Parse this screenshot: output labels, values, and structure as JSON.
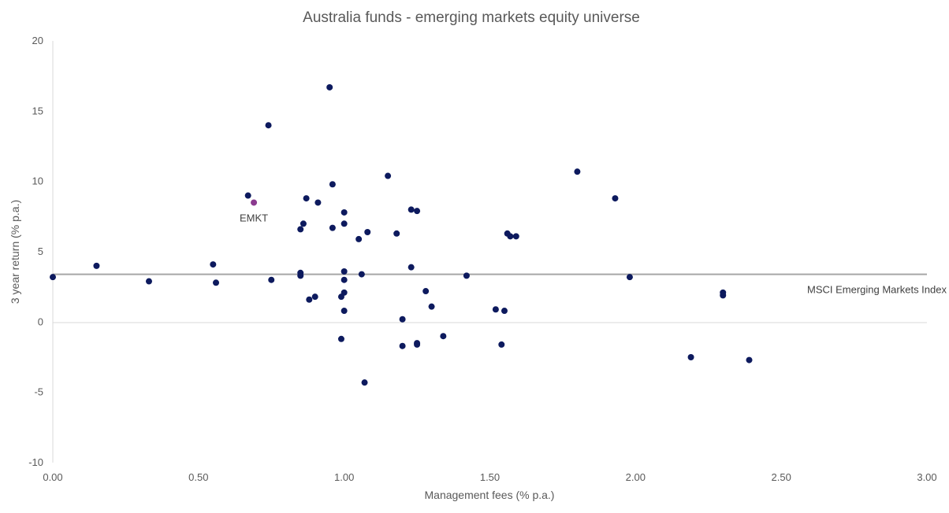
{
  "chart_data": {
    "type": "scatter",
    "title": "Australia funds - emerging markets equity universe",
    "xlabel": "Management fees (% p.a.)",
    "ylabel": "3 year return (% p.a.)",
    "xlim": [
      0,
      3
    ],
    "ylim": [
      -10,
      20
    ],
    "x_ticks": [
      "0.00",
      "0.50",
      "1.00",
      "1.50",
      "2.00",
      "2.50",
      "3.00"
    ],
    "y_ticks": [
      "-10",
      "-5",
      "0",
      "5",
      "10",
      "15",
      "20"
    ],
    "grid": false,
    "colors": {
      "funds": "#0d1a5e",
      "highlight": "#8b3a8f",
      "reference_line": "#a6a6a6",
      "axis": "#d9d9d9"
    },
    "series": [
      {
        "points": [
          {
            "x": 0.0,
            "y": 3.2
          },
          {
            "x": 0.15,
            "y": 4.0
          },
          {
            "x": 0.33,
            "y": 2.9
          },
          {
            "x": 0.55,
            "y": 4.1
          },
          {
            "x": 0.56,
            "y": 2.8
          },
          {
            "x": 0.67,
            "y": 9.0
          },
          {
            "x": 0.74,
            "y": 14.0
          },
          {
            "x": 0.75,
            "y": 3.0
          },
          {
            "x": 0.85,
            "y": 6.6
          },
          {
            "x": 0.85,
            "y": 3.5
          },
          {
            "x": 0.85,
            "y": 3.3
          },
          {
            "x": 0.86,
            "y": 7.0
          },
          {
            "x": 0.87,
            "y": 8.8
          },
          {
            "x": 0.88,
            "y": 1.6
          },
          {
            "x": 0.9,
            "y": 1.8
          },
          {
            "x": 0.91,
            "y": 8.5
          },
          {
            "x": 0.95,
            "y": 16.7
          },
          {
            "x": 0.96,
            "y": 9.8
          },
          {
            "x": 0.96,
            "y": 6.7
          },
          {
            "x": 0.99,
            "y": 1.8
          },
          {
            "x": 0.99,
            "y": -1.2
          },
          {
            "x": 1.0,
            "y": 7.8
          },
          {
            "x": 1.0,
            "y": 7.0
          },
          {
            "x": 1.0,
            "y": 3.6
          },
          {
            "x": 1.0,
            "y": 3.0
          },
          {
            "x": 1.0,
            "y": 2.1
          },
          {
            "x": 1.0,
            "y": 0.8
          },
          {
            "x": 1.05,
            "y": 5.9
          },
          {
            "x": 1.06,
            "y": 3.4
          },
          {
            "x": 1.07,
            "y": -4.3
          },
          {
            "x": 1.08,
            "y": 6.4
          },
          {
            "x": 1.15,
            "y": 10.4
          },
          {
            "x": 1.18,
            "y": 6.3
          },
          {
            "x": 1.2,
            "y": 0.2
          },
          {
            "x": 1.2,
            "y": -1.7
          },
          {
            "x": 1.23,
            "y": 8.0
          },
          {
            "x": 1.23,
            "y": 3.9
          },
          {
            "x": 1.25,
            "y": 7.9
          },
          {
            "x": 1.25,
            "y": -1.5
          },
          {
            "x": 1.25,
            "y": -1.6
          },
          {
            "x": 1.28,
            "y": 2.2
          },
          {
            "x": 1.3,
            "y": 1.1
          },
          {
            "x": 1.34,
            "y": -1.0
          },
          {
            "x": 1.42,
            "y": 3.3
          },
          {
            "x": 1.52,
            "y": 0.9
          },
          {
            "x": 1.54,
            "y": -1.6
          },
          {
            "x": 1.55,
            "y": 0.8
          },
          {
            "x": 1.56,
            "y": 6.3
          },
          {
            "x": 1.57,
            "y": 6.1
          },
          {
            "x": 1.59,
            "y": 6.1
          },
          {
            "x": 1.8,
            "y": 10.7
          },
          {
            "x": 1.93,
            "y": 8.8
          },
          {
            "x": 1.98,
            "y": 3.2
          },
          {
            "x": 2.19,
            "y": -2.5
          },
          {
            "x": 2.3,
            "y": 2.1
          },
          {
            "x": 2.3,
            "y": 1.9
          },
          {
            "x": 2.39,
            "y": -2.7
          }
        ]
      },
      {
        "name": "EMKT",
        "points": [
          {
            "x": 0.69,
            "y": 8.5
          }
        ]
      }
    ],
    "annotations": [
      {
        "text": "EMKT",
        "x": 0.69,
        "y": 8.5
      },
      {
        "text": "MSCI Emerging Markets Index",
        "y": 3.4
      }
    ]
  }
}
